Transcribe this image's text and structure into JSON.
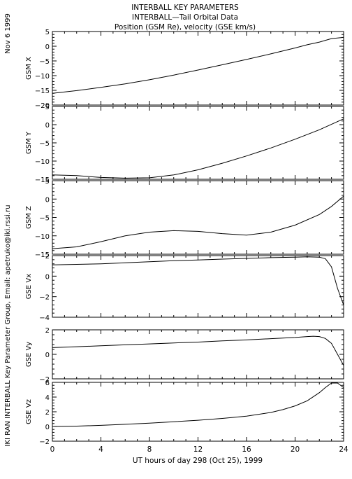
{
  "header": {
    "date": "Nov  6 1999",
    "line1": "INTERBALL KEY PARAMETERS",
    "line2": "INTERBALL—Tail Orbital Data",
    "line3": "Position (GSM Re), velocity (GSE km/s)"
  },
  "side_credit": "IKI RAN INTERBALL Key Parameter Group, Email: apetruko@iki.rssi.ru",
  "x_axis": {
    "label": "UT hours of day 298 (Oct 25), 1999",
    "ticks": [
      "0",
      "4",
      "8",
      "12",
      "16",
      "20",
      "24"
    ]
  },
  "chart_data": [
    {
      "type": "line",
      "ylabel": "GSM X",
      "xlim": [
        0,
        24
      ],
      "ylim": [
        -20,
        5
      ],
      "yticks": [
        5,
        0,
        -5,
        -10,
        -15,
        -20
      ],
      "x": [
        0,
        2,
        4,
        6,
        8,
        10,
        12,
        14,
        16,
        18,
        20,
        21,
        22,
        23,
        24
      ],
      "y": [
        -16,
        -15.1,
        -14,
        -12.8,
        -11.4,
        -9.8,
        -8.1,
        -6.3,
        -4.5,
        -2.6,
        -0.6,
        0.5,
        1.4,
        2.6,
        3.0
      ]
    },
    {
      "type": "line",
      "ylabel": "GSM Y",
      "xlim": [
        0,
        24
      ],
      "ylim": [
        -15,
        5
      ],
      "yticks": [
        5,
        0,
        -5,
        -10,
        -15
      ],
      "x": [
        0,
        2,
        4,
        6,
        8,
        10,
        12,
        14,
        16,
        18,
        20,
        22,
        24
      ],
      "y": [
        -13.8,
        -14.0,
        -14.5,
        -14.7,
        -14.6,
        -13.8,
        -12.4,
        -10.6,
        -8.6,
        -6.4,
        -4.0,
        -1.4,
        1.6
      ]
    },
    {
      "type": "line",
      "ylabel": "GSM Z",
      "xlim": [
        0,
        24
      ],
      "ylim": [
        -15,
        5
      ],
      "yticks": [
        5,
        0,
        -5,
        -10,
        -15
      ],
      "x": [
        0,
        2,
        4,
        6,
        8,
        10,
        12,
        14,
        16,
        18,
        20,
        22,
        23,
        24
      ],
      "y": [
        -13.5,
        -13.0,
        -11.6,
        -10.0,
        -9.0,
        -8.6,
        -8.8,
        -9.4,
        -9.8,
        -9.0,
        -7.1,
        -4.2,
        -2.0,
        0.8
      ]
    },
    {
      "type": "line",
      "ylabel": "GSE Vx",
      "xlim": [
        0,
        24
      ],
      "ylim": [
        -4,
        2
      ],
      "yticks": [
        2,
        0,
        -2,
        -4
      ],
      "x": [
        0,
        2,
        4,
        6,
        8,
        10,
        12,
        14,
        16,
        18,
        20,
        21,
        22,
        22.5,
        23,
        23.5,
        24
      ],
      "y": [
        1.1,
        1.15,
        1.2,
        1.3,
        1.4,
        1.5,
        1.58,
        1.66,
        1.73,
        1.8,
        1.85,
        1.88,
        1.85,
        1.7,
        0.9,
        -1.2,
        -2.8
      ]
    },
    {
      "type": "line",
      "ylabel": "GSE Vy",
      "xlim": [
        0,
        24
      ],
      "ylim": [
        -2,
        2
      ],
      "yticks": [
        2,
        0,
        -2
      ],
      "x": [
        0,
        2,
        4,
        6,
        8,
        10,
        12,
        14,
        16,
        18,
        20,
        21,
        21.5,
        22,
        22.5,
        23,
        23.5,
        24
      ],
      "y": [
        0.55,
        0.62,
        0.7,
        0.78,
        0.85,
        0.93,
        1.0,
        1.1,
        1.18,
        1.28,
        1.38,
        1.45,
        1.48,
        1.45,
        1.3,
        0.9,
        0.0,
        -0.9
      ]
    },
    {
      "type": "line",
      "ylabel": "GSE Vz",
      "xlim": [
        0,
        24
      ],
      "ylim": [
        -2,
        6
      ],
      "yticks": [
        6,
        4,
        2,
        0,
        -2
      ],
      "x": [
        0,
        2,
        4,
        6,
        8,
        10,
        12,
        14,
        16,
        18,
        19,
        20,
        21,
        22,
        22.5,
        23,
        23.5,
        24
      ],
      "y": [
        0.0,
        0.05,
        0.15,
        0.3,
        0.45,
        0.65,
        0.85,
        1.1,
        1.4,
        1.9,
        2.3,
        2.8,
        3.5,
        4.6,
        5.3,
        5.9,
        5.9,
        5.3
      ]
    }
  ]
}
